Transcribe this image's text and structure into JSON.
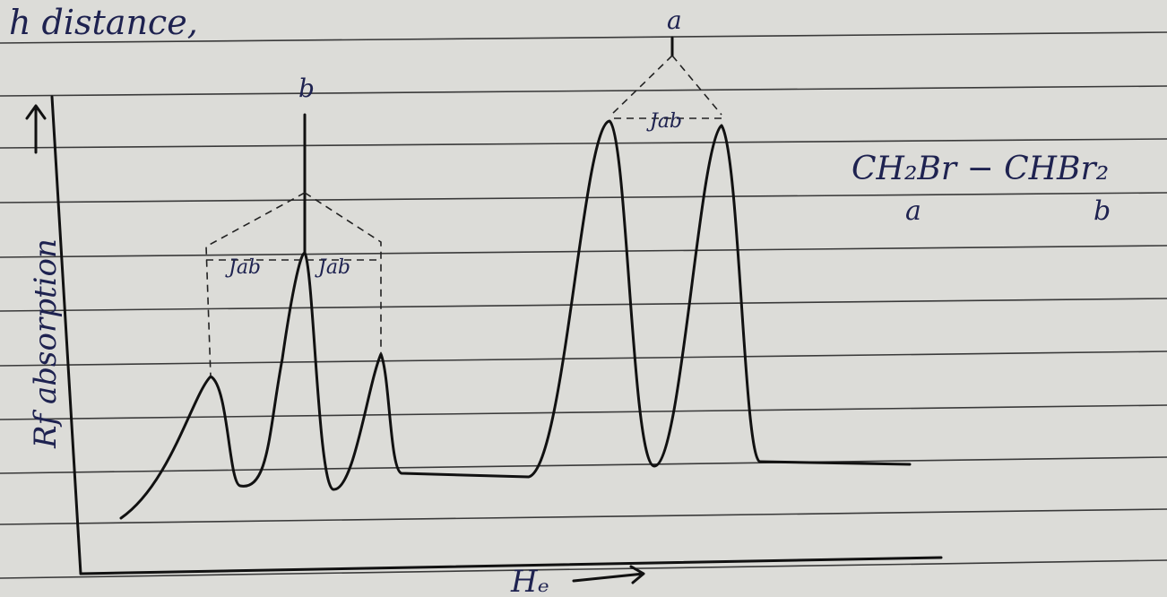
{
  "header": {
    "text": "h distance,"
  },
  "peaks": [
    {
      "label": "b"
    },
    {
      "label": "a"
    }
  ],
  "coupling_labels": [
    "Jab",
    "Jab",
    "Jab"
  ],
  "formula": {
    "text": "CH₂Br − CHBr₂",
    "left_label": "a",
    "right_label": "b"
  },
  "axes": {
    "y": "Rf absorption",
    "x": "Hₑ"
  }
}
